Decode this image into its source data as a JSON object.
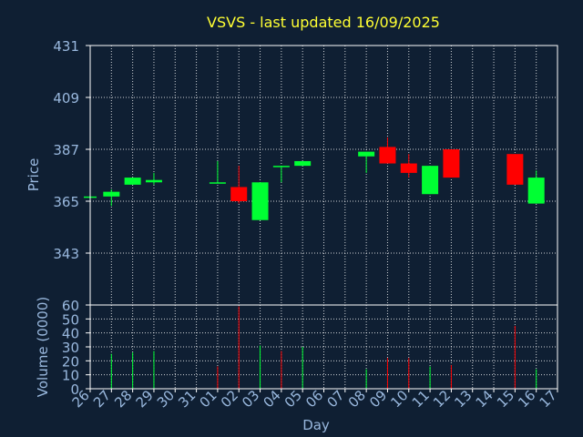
{
  "colors": {
    "background": "#0f1f33",
    "frame": "#ffffff",
    "grid": "#ffffff",
    "title": "#ffff33",
    "labels": "#99b8de",
    "up": "#00ff33",
    "down": "#ff0000"
  },
  "chart_data": [
    {
      "type": "candlestick",
      "title": "VSVS - last updated 16/09/2025",
      "ylabel": "Price",
      "ylim": [
        321,
        431
      ],
      "yticks": [
        431,
        409,
        387,
        365,
        343
      ],
      "grid": true,
      "x_tick_labels": [
        "26",
        "27",
        "28",
        "29",
        "30",
        "31",
        "01",
        "02",
        "03",
        "04",
        "05",
        "06",
        "07",
        "08",
        "09",
        "10",
        "11",
        "12",
        "13",
        "14",
        "15",
        "16",
        "17"
      ],
      "candles": [
        {
          "day": "26",
          "open": 367,
          "close": 367,
          "high": 367,
          "low": 367
        },
        {
          "day": "27",
          "open": 367,
          "close": 369,
          "high": 370,
          "low": 363
        },
        {
          "day": "28",
          "open": 372,
          "close": 375,
          "high": 375,
          "low": 372
        },
        {
          "day": "29",
          "open": 373,
          "close": 374,
          "high": 377,
          "low": 372
        },
        {
          "day": "01",
          "open": 373,
          "close": 373,
          "high": 382,
          "low": 373
        },
        {
          "day": "02",
          "open": 371,
          "close": 365,
          "high": 380,
          "low": 364
        },
        {
          "day": "03",
          "open": 357,
          "close": 373,
          "high": 373,
          "low": 357
        },
        {
          "day": "04",
          "open": 380,
          "close": 380,
          "high": 380,
          "low": 373
        },
        {
          "day": "05",
          "open": 380,
          "close": 382,
          "high": 382,
          "low": 380
        },
        {
          "day": "08",
          "open": 384,
          "close": 386,
          "high": 386,
          "low": 377
        },
        {
          "day": "09",
          "open": 388,
          "close": 381,
          "high": 392,
          "low": 381
        },
        {
          "day": "10",
          "open": 381,
          "close": 377,
          "high": 385,
          "low": 375
        },
        {
          "day": "11",
          "open": 368,
          "close": 380,
          "high": 380,
          "low": 368
        },
        {
          "day": "12",
          "open": 387,
          "close": 375,
          "high": 387,
          "low": 375
        },
        {
          "day": "15",
          "open": 385,
          "close": 372,
          "high": 385,
          "low": 372
        },
        {
          "day": "16",
          "open": 364,
          "close": 375,
          "high": 378,
          "low": 364
        }
      ]
    },
    {
      "type": "bar",
      "xlabel": "Day",
      "ylabel": "Volume (0000)",
      "ylim": [
        0,
        60
      ],
      "yticks": [
        0,
        10,
        20,
        30,
        40,
        50,
        60
      ],
      "grid": true,
      "x_tick_labels": [
        "26",
        "27",
        "28",
        "29",
        "30",
        "31",
        "01",
        "02",
        "03",
        "04",
        "05",
        "06",
        "07",
        "08",
        "09",
        "10",
        "11",
        "12",
        "13",
        "14",
        "15",
        "16",
        "17"
      ],
      "bars": [
        {
          "day": "27",
          "value": 25,
          "direction": "up"
        },
        {
          "day": "28",
          "value": 26,
          "direction": "up"
        },
        {
          "day": "29",
          "value": 27,
          "direction": "up"
        },
        {
          "day": "01",
          "value": 16,
          "direction": "down"
        },
        {
          "day": "02",
          "value": 59,
          "direction": "down"
        },
        {
          "day": "03",
          "value": 31,
          "direction": "up"
        },
        {
          "day": "04",
          "value": 27,
          "direction": "down"
        },
        {
          "day": "05",
          "value": 30,
          "direction": "up"
        },
        {
          "day": "08",
          "value": 14,
          "direction": "up"
        },
        {
          "day": "09",
          "value": 22,
          "direction": "down"
        },
        {
          "day": "10",
          "value": 22,
          "direction": "down"
        },
        {
          "day": "11",
          "value": 16,
          "direction": "up"
        },
        {
          "day": "12",
          "value": 17,
          "direction": "down"
        },
        {
          "day": "15",
          "value": 45,
          "direction": "down"
        },
        {
          "day": "16",
          "value": 14,
          "direction": "up"
        }
      ]
    }
  ]
}
